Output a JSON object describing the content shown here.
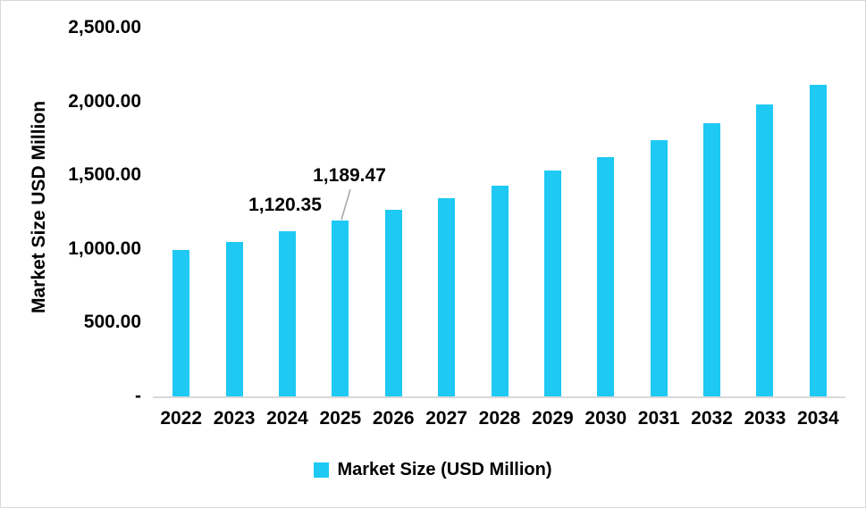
{
  "chart_data": {
    "type": "bar",
    "title": "",
    "ylabel": "Market Size USD Million",
    "xlabel": "",
    "categories": [
      "2022",
      "2023",
      "2024",
      "2025",
      "2026",
      "2027",
      "2028",
      "2029",
      "2030",
      "2031",
      "2032",
      "2033",
      "2034"
    ],
    "series": [
      {
        "name": "Market Size (USD Million)",
        "values": [
          995,
          1050,
          1120.35,
          1189.47,
          1265,
          1345,
          1430,
          1530,
          1625,
          1735,
          1850,
          1980,
          2115
        ]
      }
    ],
    "ylim": [
      0,
      2500
    ],
    "ytick_interval": 500,
    "yticks": [
      {
        "value": 2500,
        "label": "2,500.00"
      },
      {
        "value": 2000,
        "label": "2,000.00"
      },
      {
        "value": 1500,
        "label": "1,500.00"
      },
      {
        "value": 1000,
        "label": "1,000.00"
      },
      {
        "value": 500,
        "label": "500.00"
      },
      {
        "value": 0,
        "label": "-"
      }
    ],
    "data_labels": [
      {
        "category": "2024",
        "text": "1,120.35"
      },
      {
        "category": "2025",
        "text": "1,189.47"
      }
    ],
    "legend": {
      "label": "Market Size (USD Million)",
      "position": "bottom"
    },
    "grid": false,
    "colors": {
      "bar": "#1EC9F3",
      "axis_line": "#d9d9d9",
      "text": "#000000",
      "leader_line": "#a6a6a6"
    }
  }
}
